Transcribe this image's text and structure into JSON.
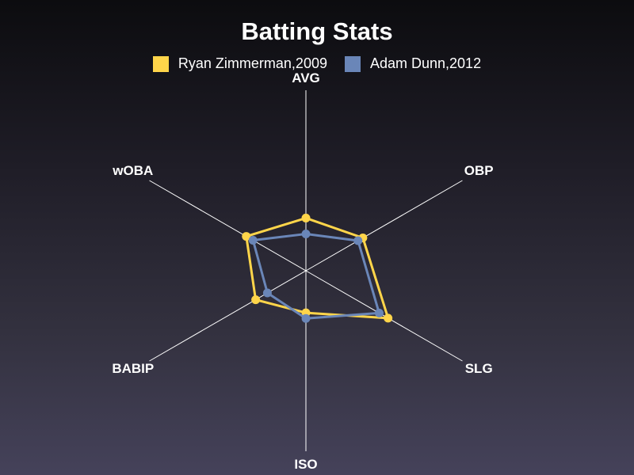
{
  "chart_data": {
    "type": "radar",
    "title": "Batting Stats",
    "axes": [
      "AVG",
      "OBP",
      "SLG",
      "ISO",
      "BABIP",
      "wOBA"
    ],
    "rmax": 1.0,
    "grid": false,
    "legend_position": "top-center",
    "series": [
      {
        "name": "Ryan Zimmerman,2009",
        "color": "#ffd54a",
        "values": [
          0.292,
          0.364,
          0.525,
          0.233,
          0.321,
          0.381
        ]
      },
      {
        "name": "Adam Dunn,2012",
        "color": "#6a86b8",
        "values": [
          0.204,
          0.333,
          0.468,
          0.264,
          0.246,
          0.338
        ]
      }
    ]
  }
}
